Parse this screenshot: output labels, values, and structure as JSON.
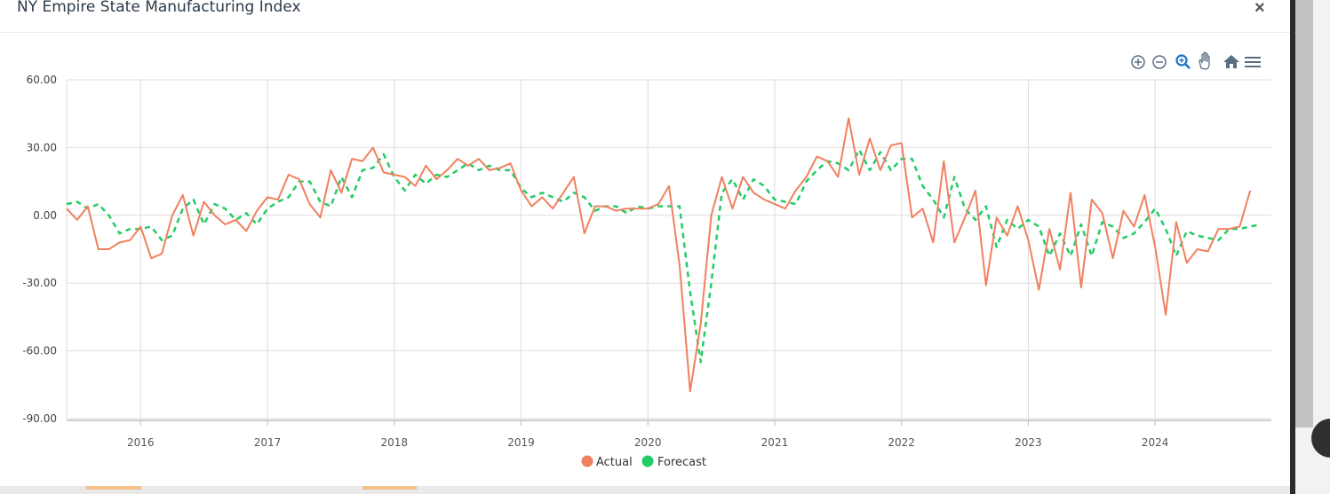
{
  "modal": {
    "title": "NY Empire State Manufacturing Index",
    "close_label": "×"
  },
  "toolbar": {
    "icons": [
      "zoom-in-icon",
      "zoom-out-icon",
      "selection-zoom-icon",
      "pan-icon",
      "reset-home-icon",
      "menu-icon"
    ]
  },
  "colors": {
    "actual": "#f08060",
    "forecast": "#22cc66",
    "grid": "#dddddd"
  },
  "chart_data": {
    "type": "line",
    "title": "",
    "xlabel": "",
    "ylabel": "",
    "ylim": [
      -90,
      60
    ],
    "y_ticks": [
      "60.00",
      "30.00",
      "0.00",
      "-30.00",
      "-60.00",
      "-90.00"
    ],
    "x_ticks": [
      "2016",
      "2017",
      "2018",
      "2019",
      "2020",
      "2021",
      "2022",
      "2023",
      "2024"
    ],
    "xlim": [
      "2015-06",
      "2024-12"
    ],
    "grid": true,
    "legend_position": "bottom-center",
    "series": [
      {
        "name": "Actual",
        "style": "solid",
        "color": "#f08060",
        "points": [
          [
            "2015-06",
            3
          ],
          [
            "2015-07",
            -2
          ],
          [
            "2015-08",
            4
          ],
          [
            "2015-09",
            -15
          ],
          [
            "2015-10",
            -15
          ],
          [
            "2015-11",
            -12
          ],
          [
            "2015-12",
            -11
          ],
          [
            "2016-01",
            -5
          ],
          [
            "2016-02",
            -19
          ],
          [
            "2016-03",
            -17
          ],
          [
            "2016-04",
            0
          ],
          [
            "2016-05",
            9
          ],
          [
            "2016-06",
            -9
          ],
          [
            "2016-07",
            6
          ],
          [
            "2016-08",
            0
          ],
          [
            "2016-09",
            -4
          ],
          [
            "2016-10",
            -2
          ],
          [
            "2016-11",
            -7
          ],
          [
            "2016-12",
            2
          ],
          [
            "2017-01",
            8
          ],
          [
            "2017-02",
            7
          ],
          [
            "2017-03",
            18
          ],
          [
            "2017-04",
            16
          ],
          [
            "2017-05",
            5
          ],
          [
            "2017-06",
            -1
          ],
          [
            "2017-07",
            20
          ],
          [
            "2017-08",
            10
          ],
          [
            "2017-09",
            25
          ],
          [
            "2017-10",
            24
          ],
          [
            "2017-11",
            30
          ],
          [
            "2017-12",
            19
          ],
          [
            "2018-01",
            18
          ],
          [
            "2018-02",
            17
          ],
          [
            "2018-03",
            13
          ],
          [
            "2018-04",
            22
          ],
          [
            "2018-05",
            16
          ],
          [
            "2018-06",
            20
          ],
          [
            "2018-07",
            25
          ],
          [
            "2018-08",
            22
          ],
          [
            "2018-09",
            25
          ],
          [
            "2018-10",
            20
          ],
          [
            "2018-11",
            21
          ],
          [
            "2018-12",
            23
          ],
          [
            "2019-01",
            11
          ],
          [
            "2019-02",
            4
          ],
          [
            "2019-03",
            8
          ],
          [
            "2019-04",
            3
          ],
          [
            "2019-05",
            10
          ],
          [
            "2019-06",
            17
          ],
          [
            "2019-07",
            -8
          ],
          [
            "2019-08",
            4
          ],
          [
            "2019-09",
            4
          ],
          [
            "2019-10",
            2
          ],
          [
            "2019-11",
            3
          ],
          [
            "2019-12",
            3
          ],
          [
            "2020-01",
            3
          ],
          [
            "2020-02",
            5
          ],
          [
            "2020-03",
            13
          ],
          [
            "2020-04",
            -22
          ],
          [
            "2020-05",
            -78
          ],
          [
            "2020-06",
            -48
          ],
          [
            "2020-07",
            0
          ],
          [
            "2020-08",
            17
          ],
          [
            "2020-09",
            3
          ],
          [
            "2020-10",
            17
          ],
          [
            "2020-11",
            10
          ],
          [
            "2020-12",
            7
          ],
          [
            "2021-01",
            5
          ],
          [
            "2021-02",
            3
          ],
          [
            "2021-03",
            11
          ],
          [
            "2021-04",
            17
          ],
          [
            "2021-05",
            26
          ],
          [
            "2021-06",
            24
          ],
          [
            "2021-07",
            17
          ],
          [
            "2021-08",
            43
          ],
          [
            "2021-09",
            18
          ],
          [
            "2021-10",
            34
          ],
          [
            "2021-11",
            20
          ],
          [
            "2021-12",
            31
          ],
          [
            "2022-01",
            32
          ],
          [
            "2022-02",
            -1
          ],
          [
            "2022-03",
            3
          ],
          [
            "2022-04",
            -12
          ],
          [
            "2022-05",
            24
          ],
          [
            "2022-06",
            -12
          ],
          [
            "2022-07",
            -1
          ],
          [
            "2022-08",
            11
          ],
          [
            "2022-09",
            -31
          ],
          [
            "2022-10",
            -1
          ],
          [
            "2022-11",
            -9
          ],
          [
            "2022-12",
            4
          ],
          [
            "2023-01",
            -11
          ],
          [
            "2023-02",
            -33
          ],
          [
            "2023-03",
            -6
          ],
          [
            "2023-04",
            -24
          ],
          [
            "2023-05",
            10
          ],
          [
            "2023-06",
            -32
          ],
          [
            "2023-07",
            7
          ],
          [
            "2023-08",
            1
          ],
          [
            "2023-09",
            -19
          ],
          [
            "2023-10",
            2
          ],
          [
            "2023-11",
            -5
          ],
          [
            "2023-12",
            9
          ],
          [
            "2024-01",
            -14
          ],
          [
            "2024-02",
            -44
          ],
          [
            "2024-03",
            -3
          ],
          [
            "2024-04",
            -21
          ],
          [
            "2024-05",
            -15
          ],
          [
            "2024-06",
            -16
          ],
          [
            "2024-07",
            -6
          ],
          [
            "2024-08",
            -6
          ],
          [
            "2024-09",
            -5
          ],
          [
            "2024-10",
            11
          ]
        ]
      },
      {
        "name": "Forecast",
        "style": "dashed",
        "color": "#22cc66",
        "points": [
          [
            "2015-06",
            5
          ],
          [
            "2015-07",
            6
          ],
          [
            "2015-08",
            3
          ],
          [
            "2015-09",
            5
          ],
          [
            "2015-10",
            0
          ],
          [
            "2015-11",
            -8
          ],
          [
            "2015-12",
            -6
          ],
          [
            "2016-01",
            -6
          ],
          [
            "2016-02",
            -5
          ],
          [
            "2016-03",
            -11
          ],
          [
            "2016-04",
            -9
          ],
          [
            "2016-05",
            3
          ],
          [
            "2016-06",
            7
          ],
          [
            "2016-07",
            -4
          ],
          [
            "2016-08",
            5
          ],
          [
            "2016-09",
            3
          ],
          [
            "2016-10",
            -2
          ],
          [
            "2016-11",
            1
          ],
          [
            "2016-12",
            -4
          ],
          [
            "2017-01",
            3
          ],
          [
            "2017-02",
            6
          ],
          [
            "2017-03",
            8
          ],
          [
            "2017-04",
            15
          ],
          [
            "2017-05",
            15
          ],
          [
            "2017-06",
            6
          ],
          [
            "2017-07",
            4
          ],
          [
            "2017-08",
            17
          ],
          [
            "2017-09",
            8
          ],
          [
            "2017-10",
            20
          ],
          [
            "2017-11",
            21
          ],
          [
            "2017-12",
            27
          ],
          [
            "2018-01",
            17
          ],
          [
            "2018-02",
            11
          ],
          [
            "2018-03",
            18
          ],
          [
            "2018-04",
            14
          ],
          [
            "2018-05",
            18
          ],
          [
            "2018-06",
            17
          ],
          [
            "2018-07",
            20
          ],
          [
            "2018-08",
            23
          ],
          [
            "2018-09",
            20
          ],
          [
            "2018-10",
            22
          ],
          [
            "2018-11",
            20
          ],
          [
            "2018-12",
            20
          ],
          [
            "2019-01",
            12
          ],
          [
            "2019-02",
            8
          ],
          [
            "2019-03",
            10
          ],
          [
            "2019-04",
            8
          ],
          [
            "2019-05",
            6
          ],
          [
            "2019-06",
            10
          ],
          [
            "2019-07",
            8
          ],
          [
            "2019-08",
            2
          ],
          [
            "2019-09",
            4
          ],
          [
            "2019-10",
            4
          ],
          [
            "2019-11",
            1
          ],
          [
            "2019-12",
            4
          ],
          [
            "2020-01",
            3
          ],
          [
            "2020-02",
            4
          ],
          [
            "2020-03",
            4
          ],
          [
            "2020-04",
            4
          ],
          [
            "2020-05",
            -34
          ],
          [
            "2020-06",
            -65
          ],
          [
            "2020-07",
            -30
          ],
          [
            "2020-08",
            10
          ],
          [
            "2020-09",
            16
          ],
          [
            "2020-10",
            7
          ],
          [
            "2020-11",
            16
          ],
          [
            "2020-12",
            13
          ],
          [
            "2021-01",
            7
          ],
          [
            "2021-02",
            6
          ],
          [
            "2021-03",
            5
          ],
          [
            "2021-04",
            15
          ],
          [
            "2021-05",
            20
          ],
          [
            "2021-06",
            24
          ],
          [
            "2021-07",
            23
          ],
          [
            "2021-08",
            20
          ],
          [
            "2021-09",
            29
          ],
          [
            "2021-10",
            20
          ],
          [
            "2021-11",
            28
          ],
          [
            "2021-12",
            20
          ],
          [
            "2022-01",
            25
          ],
          [
            "2022-02",
            25
          ],
          [
            "2022-03",
            13
          ],
          [
            "2022-04",
            7
          ],
          [
            "2022-05",
            -1
          ],
          [
            "2022-06",
            17
          ],
          [
            "2022-07",
            3
          ],
          [
            "2022-08",
            -2
          ],
          [
            "2022-09",
            4
          ],
          [
            "2022-10",
            -14
          ],
          [
            "2022-11",
            -2
          ],
          [
            "2022-12",
            -6
          ],
          [
            "2023-01",
            -2
          ],
          [
            "2023-02",
            -5
          ],
          [
            "2023-03",
            -18
          ],
          [
            "2023-04",
            -8
          ],
          [
            "2023-05",
            -18
          ],
          [
            "2023-06",
            -4
          ],
          [
            "2023-07",
            -18
          ],
          [
            "2023-08",
            -3
          ],
          [
            "2023-09",
            -5
          ],
          [
            "2023-10",
            -10
          ],
          [
            "2023-11",
            -8
          ],
          [
            "2023-12",
            -3
          ],
          [
            "2024-01",
            3
          ],
          [
            "2024-02",
            -6
          ],
          [
            "2024-03",
            -18
          ],
          [
            "2024-04",
            -7
          ],
          [
            "2024-05",
            -9
          ],
          [
            "2024-06",
            -10
          ],
          [
            "2024-07",
            -11
          ],
          [
            "2024-08",
            -6
          ],
          [
            "2024-09",
            -6
          ],
          [
            "2024-10",
            -5
          ],
          [
            "2024-11",
            -4
          ]
        ]
      }
    ]
  }
}
